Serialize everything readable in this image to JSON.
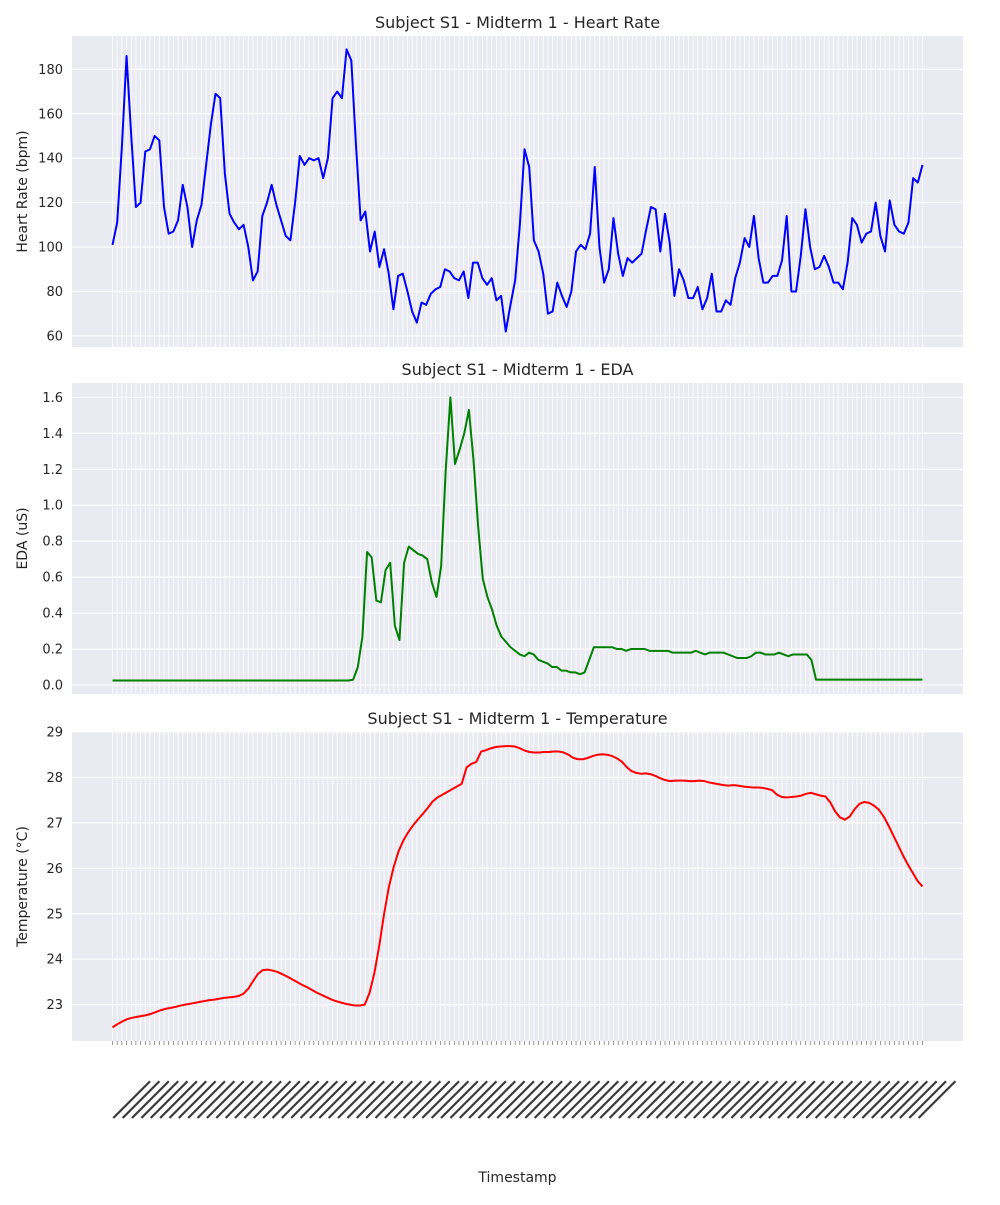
{
  "figure": {
    "background": "#ffffff",
    "axes_background": "#eaeaf2",
    "grid_color": "#ffffff"
  },
  "chart_data": [
    {
      "type": "line",
      "title": "Subject S1 - Midterm 1 - Heart Rate",
      "xlabel": "",
      "ylabel": "Heart Rate (bpm)",
      "ylim": [
        55,
        195
      ],
      "yticks": [
        60,
        80,
        100,
        120,
        140,
        160,
        180
      ],
      "grid": true,
      "color": "#0000ff",
      "values": [
        101,
        111,
        145,
        186,
        150,
        118,
        120,
        143,
        144,
        150,
        148,
        118,
        106,
        107,
        112,
        128,
        118,
        100,
        112,
        119,
        137,
        155,
        169,
        167,
        133,
        115,
        111,
        108,
        110,
        100,
        85,
        89,
        114,
        120,
        128,
        119,
        112,
        105,
        103,
        120,
        141,
        137,
        140,
        139,
        140,
        131,
        140,
        167,
        170,
        167,
        189,
        184,
        146,
        112,
        116,
        98,
        107,
        91,
        99,
        88,
        72,
        87,
        88,
        80,
        71,
        66,
        75,
        74,
        79,
        81,
        82,
        90,
        89,
        86,
        85,
        89,
        77,
        93,
        93,
        86,
        83,
        86,
        76,
        78,
        62,
        74,
        85,
        110,
        144,
        136,
        103,
        98,
        88,
        70,
        71,
        84,
        78,
        73,
        80,
        98,
        101,
        99,
        106,
        136,
        100,
        84,
        90,
        113,
        97,
        87,
        95,
        93,
        95,
        97,
        108,
        118,
        117,
        98,
        115,
        102,
        78,
        90,
        85,
        77,
        77,
        82,
        72,
        77,
        88,
        71,
        71,
        76,
        74,
        86,
        93,
        104,
        100,
        114,
        95,
        84,
        84,
        87,
        87,
        94,
        114,
        80,
        80,
        96,
        117,
        100,
        90,
        91,
        96,
        91,
        84,
        84,
        81,
        93,
        113,
        110,
        102,
        106,
        107,
        120,
        105,
        98,
        121,
        110,
        107,
        106,
        111,
        131,
        129,
        137
      ]
    },
    {
      "type": "line",
      "title": "Subject S1 - Midterm 1 - EDA",
      "xlabel": "",
      "ylabel": "EDA (uS)",
      "ylim": [
        -0.05,
        1.68
      ],
      "yticks": [
        0.0,
        0.2,
        0.4,
        0.6,
        0.8,
        1.0,
        1.2,
        1.4,
        1.6
      ],
      "grid": true,
      "color": "#008000",
      "values": [
        0.025,
        0.025,
        0.025,
        0.025,
        0.025,
        0.025,
        0.025,
        0.025,
        0.025,
        0.025,
        0.025,
        0.025,
        0.025,
        0.025,
        0.025,
        0.025,
        0.025,
        0.025,
        0.025,
        0.025,
        0.025,
        0.025,
        0.025,
        0.025,
        0.025,
        0.025,
        0.025,
        0.025,
        0.025,
        0.025,
        0.025,
        0.025,
        0.025,
        0.025,
        0.025,
        0.025,
        0.025,
        0.025,
        0.025,
        0.025,
        0.025,
        0.025,
        0.025,
        0.025,
        0.025,
        0.025,
        0.025,
        0.025,
        0.025,
        0.025,
        0.025,
        0.025,
        0.03,
        0.1,
        0.27,
        0.74,
        0.71,
        0.47,
        0.46,
        0.64,
        0.68,
        0.33,
        0.25,
        0.68,
        0.77,
        0.75,
        0.73,
        0.72,
        0.7,
        0.57,
        0.49,
        0.66,
        1.2,
        1.6,
        1.23,
        1.31,
        1.4,
        1.53,
        1.25,
        0.88,
        0.59,
        0.49,
        0.42,
        0.33,
        0.27,
        0.24,
        0.21,
        0.19,
        0.17,
        0.16,
        0.18,
        0.17,
        0.14,
        0.13,
        0.12,
        0.1,
        0.1,
        0.08,
        0.08,
        0.07,
        0.07,
        0.06,
        0.07,
        0.14,
        0.21,
        0.21,
        0.21,
        0.21,
        0.21,
        0.2,
        0.2,
        0.19,
        0.2,
        0.2,
        0.2,
        0.2,
        0.19,
        0.19,
        0.19,
        0.19,
        0.19,
        0.18,
        0.18,
        0.18,
        0.18,
        0.18,
        0.19,
        0.18,
        0.17,
        0.18,
        0.18,
        0.18,
        0.18,
        0.17,
        0.16,
        0.15,
        0.15,
        0.15,
        0.16,
        0.18,
        0.18,
        0.17,
        0.17,
        0.17,
        0.18,
        0.17,
        0.16,
        0.17,
        0.17,
        0.17,
        0.17,
        0.14,
        0.03,
        0.03,
        0.03,
        0.03,
        0.03,
        0.03,
        0.03,
        0.03,
        0.03,
        0.03,
        0.03,
        0.03,
        0.03,
        0.03,
        0.03,
        0.03,
        0.03,
        0.03,
        0.03,
        0.03,
        0.03,
        0.03,
        0.03,
        0.03
      ]
    },
    {
      "type": "line",
      "title": "Subject S1 - Midterm 1 - Temperature",
      "xlabel": "Timestamp",
      "ylabel": "Temperature (°C)",
      "ylim": [
        22.2,
        29.0
      ],
      "yticks": [
        23,
        24,
        25,
        26,
        27,
        28,
        29
      ],
      "grid": true,
      "color": "#ff0000",
      "values": [
        22.5,
        22.57,
        22.63,
        22.68,
        22.71,
        22.73,
        22.75,
        22.77,
        22.8,
        22.84,
        22.88,
        22.91,
        22.93,
        22.95,
        22.98,
        23.0,
        23.02,
        23.04,
        23.06,
        23.08,
        23.1,
        23.11,
        23.13,
        23.15,
        23.16,
        23.17,
        23.19,
        23.24,
        23.35,
        23.52,
        23.68,
        23.76,
        23.77,
        23.75,
        23.72,
        23.67,
        23.62,
        23.56,
        23.5,
        23.44,
        23.39,
        23.33,
        23.27,
        23.22,
        23.17,
        23.12,
        23.08,
        23.05,
        23.02,
        23.0,
        22.98,
        22.98,
        23.0,
        23.26,
        23.7,
        24.3,
        25.0,
        25.6,
        26.04,
        26.38,
        26.62,
        26.8,
        26.95,
        27.08,
        27.2,
        27.33,
        27.47,
        27.56,
        27.62,
        27.68,
        27.74,
        27.8,
        27.86,
        28.22,
        28.3,
        28.34,
        28.57,
        28.6,
        28.64,
        28.67,
        28.68,
        28.69,
        28.69,
        28.68,
        28.64,
        28.59,
        28.56,
        28.55,
        28.55,
        28.56,
        28.56,
        28.57,
        28.57,
        28.55,
        28.5,
        28.43,
        28.4,
        28.4,
        28.43,
        28.47,
        28.5,
        28.51,
        28.5,
        28.47,
        28.42,
        28.35,
        28.23,
        28.14,
        28.1,
        28.08,
        28.09,
        28.07,
        28.03,
        27.98,
        27.94,
        27.92,
        27.93,
        27.93,
        27.93,
        27.92,
        27.92,
        27.93,
        27.92,
        27.89,
        27.87,
        27.85,
        27.83,
        27.82,
        27.83,
        27.82,
        27.8,
        27.79,
        27.78,
        27.78,
        27.77,
        27.75,
        27.72,
        27.62,
        27.57,
        27.56,
        27.57,
        27.58,
        27.6,
        27.64,
        27.66,
        27.63,
        27.6,
        27.58,
        27.45,
        27.25,
        27.12,
        27.07,
        27.14,
        27.3,
        27.42,
        27.46,
        27.44,
        27.38,
        27.29,
        27.14,
        26.94,
        26.72,
        26.5,
        26.28,
        26.08,
        25.9,
        25.72,
        25.6
      ]
    }
  ],
  "x_axis": {
    "tick_count": 174,
    "tick_labels_note": ""
  }
}
